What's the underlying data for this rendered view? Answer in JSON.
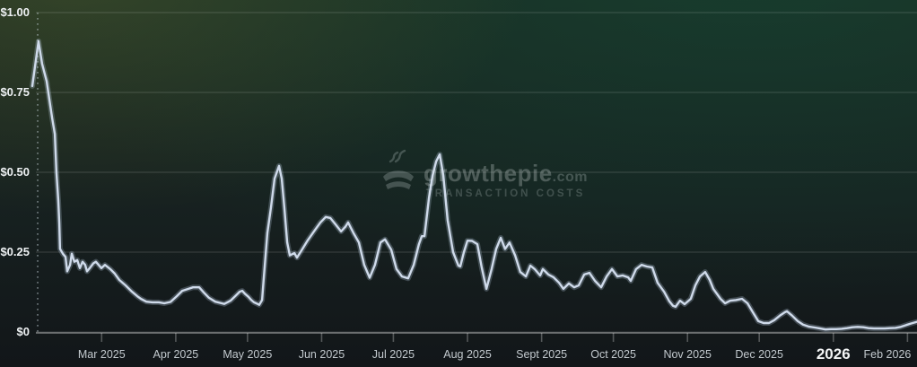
{
  "watermark": {
    "brand": "growthepie",
    "tld": ".com",
    "subtitle": "TRANSACTION COSTS"
  },
  "colors": {
    "line": "#cfdaea",
    "line_glow": "rgba(200,218,242,0.25)",
    "gridline": "rgba(255,255,255,0.17)",
    "axis_line": "rgba(255,255,255,0.32)",
    "tick": "rgba(255,255,255,0.28)",
    "start_marker": "rgba(200,214,220,0.55)",
    "y_label": "#eef1f3",
    "x_label": "#c3cacf",
    "x_label_emphasis": "#f3f5f6"
  },
  "chart_data": {
    "type": "line",
    "title": "",
    "series_name": "Transaction Costs (USD)",
    "legend": "none",
    "grid": true,
    "x_unit": "days since 2025-01-31",
    "x_start_date": "2025-01-31",
    "y_axis": {
      "min": 0,
      "max": 1.0,
      "ticks": [
        {
          "label": "$1.00",
          "value": 1.0
        },
        {
          "label": "$0.75",
          "value": 0.75
        },
        {
          "label": "$0.50",
          "value": 0.5
        },
        {
          "label": "$0.25",
          "value": 0.25
        },
        {
          "label": "$0",
          "value": 0
        }
      ]
    },
    "x_axis": {
      "months": [
        {
          "label": "Mar 2025",
          "day": 29
        },
        {
          "label": "Apr 2025",
          "day": 60
        },
        {
          "label": "May 2025",
          "day": 90
        },
        {
          "label": "Jun 2025",
          "day": 121
        },
        {
          "label": "Jul 2025",
          "day": 151
        },
        {
          "label": "Aug 2025",
          "day": 182
        },
        {
          "label": "Sept 2025",
          "day": 213
        },
        {
          "label": "Oct 2025",
          "day": 243
        },
        {
          "label": "Nov 2025",
          "day": 274
        },
        {
          "label": "Dec 2025",
          "day": 304
        },
        {
          "label": "2026",
          "day": 335,
          "emphasis": true
        },
        {
          "label": "Feb 2026",
          "day": 366,
          "align_right": true
        }
      ]
    },
    "points": [
      [
        0,
        0.77
      ],
      [
        2.6,
        0.91
      ],
      [
        4.1,
        0.84
      ],
      [
        6,
        0.785
      ],
      [
        7.1,
        0.73
      ],
      [
        8.3,
        0.67
      ],
      [
        9.4,
        0.62
      ],
      [
        10.1,
        0.5
      ],
      [
        10.9,
        0.41
      ],
      [
        11.3,
        0.34
      ],
      [
        11.6,
        0.26
      ],
      [
        12.8,
        0.245
      ],
      [
        13.9,
        0.235
      ],
      [
        14.6,
        0.19
      ],
      [
        15.8,
        0.21
      ],
      [
        16.5,
        0.245
      ],
      [
        17.6,
        0.22
      ],
      [
        18.8,
        0.225
      ],
      [
        19.9,
        0.2
      ],
      [
        21,
        0.22
      ],
      [
        22.1,
        0.21
      ],
      [
        22.9,
        0.19
      ],
      [
        24,
        0.2
      ],
      [
        25.5,
        0.215
      ],
      [
        26.6,
        0.22
      ],
      [
        28.9,
        0.2
      ],
      [
        30.4,
        0.21
      ],
      [
        32.6,
        0.197
      ],
      [
        34.5,
        0.183
      ],
      [
        36.4,
        0.163
      ],
      [
        39,
        0.146
      ],
      [
        41.7,
        0.126
      ],
      [
        43.9,
        0.112
      ],
      [
        45.4,
        0.104
      ],
      [
        47.7,
        0.095
      ],
      [
        50.3,
        0.093
      ],
      [
        52.9,
        0.093
      ],
      [
        55.2,
        0.09
      ],
      [
        57.8,
        0.094
      ],
      [
        60.4,
        0.112
      ],
      [
        62.7,
        0.129
      ],
      [
        65.3,
        0.135
      ],
      [
        67.2,
        0.14
      ],
      [
        69.8,
        0.14
      ],
      [
        71.7,
        0.124
      ],
      [
        73.9,
        0.107
      ],
      [
        76.5,
        0.095
      ],
      [
        79.2,
        0.09
      ],
      [
        80.3,
        0.088
      ],
      [
        81.4,
        0.092
      ],
      [
        82.9,
        0.098
      ],
      [
        85.2,
        0.115
      ],
      [
        86.7,
        0.126
      ],
      [
        87.8,
        0.129
      ],
      [
        88.9,
        0.12
      ],
      [
        90.4,
        0.11
      ],
      [
        91.6,
        0.1
      ],
      [
        92.7,
        0.093
      ],
      [
        94.2,
        0.088
      ],
      [
        94.9,
        0.085
      ],
      [
        96.1,
        0.1
      ],
      [
        96.8,
        0.17
      ],
      [
        98.3,
        0.31
      ],
      [
        99.8,
        0.39
      ],
      [
        101.3,
        0.48
      ],
      [
        103.2,
        0.52
      ],
      [
        104.3,
        0.48
      ],
      [
        105.4,
        0.39
      ],
      [
        106.6,
        0.28
      ],
      [
        107.7,
        0.24
      ],
      [
        109.6,
        0.247
      ],
      [
        110.7,
        0.233
      ],
      [
        113,
        0.26
      ],
      [
        115.2,
        0.287
      ],
      [
        117.8,
        0.315
      ],
      [
        120.5,
        0.343
      ],
      [
        122.7,
        0.36
      ],
      [
        124.6,
        0.357
      ],
      [
        126.8,
        0.337
      ],
      [
        129.1,
        0.315
      ],
      [
        131,
        0.33
      ],
      [
        132.1,
        0.343
      ],
      [
        134.3,
        0.31
      ],
      [
        136.6,
        0.28
      ],
      [
        138.8,
        0.21
      ],
      [
        141.1,
        0.17
      ],
      [
        143.3,
        0.21
      ],
      [
        145.6,
        0.28
      ],
      [
        147.5,
        0.29
      ],
      [
        150.1,
        0.258
      ],
      [
        152.3,
        0.197
      ],
      [
        154.6,
        0.174
      ],
      [
        157.2,
        0.168
      ],
      [
        159.5,
        0.21
      ],
      [
        161.7,
        0.275
      ],
      [
        162.9,
        0.3
      ],
      [
        164,
        0.3
      ],
      [
        165.9,
        0.42
      ],
      [
        167.4,
        0.49
      ],
      [
        168.9,
        0.534
      ],
      [
        170.4,
        0.556
      ],
      [
        171.9,
        0.49
      ],
      [
        173.7,
        0.35
      ],
      [
        176,
        0.25
      ],
      [
        178.2,
        0.208
      ],
      [
        179,
        0.205
      ],
      [
        180.5,
        0.25
      ],
      [
        182,
        0.286
      ],
      [
        183.9,
        0.285
      ],
      [
        186.1,
        0.275
      ],
      [
        188,
        0.2
      ],
      [
        189.9,
        0.135
      ],
      [
        192.1,
        0.197
      ],
      [
        194,
        0.26
      ],
      [
        195.9,
        0.295
      ],
      [
        197.7,
        0.26
      ],
      [
        199.6,
        0.28
      ],
      [
        201.9,
        0.24
      ],
      [
        204.1,
        0.188
      ],
      [
        206.4,
        0.174
      ],
      [
        208.3,
        0.208
      ],
      [
        210.1,
        0.197
      ],
      [
        212.4,
        0.177
      ],
      [
        213.5,
        0.197
      ],
      [
        215.8,
        0.18
      ],
      [
        218,
        0.171
      ],
      [
        220.3,
        0.154
      ],
      [
        222.1,
        0.135
      ],
      [
        224.4,
        0.152
      ],
      [
        226.6,
        0.14
      ],
      [
        228.5,
        0.146
      ],
      [
        230.8,
        0.18
      ],
      [
        233,
        0.185
      ],
      [
        235.3,
        0.16
      ],
      [
        237.9,
        0.14
      ],
      [
        240.2,
        0.174
      ],
      [
        242.4,
        0.197
      ],
      [
        244.7,
        0.174
      ],
      [
        246.9,
        0.177
      ],
      [
        249.2,
        0.171
      ],
      [
        250.3,
        0.16
      ],
      [
        252.5,
        0.197
      ],
      [
        254.8,
        0.21
      ],
      [
        257,
        0.205
      ],
      [
        259.3,
        0.202
      ],
      [
        261.5,
        0.154
      ],
      [
        264.2,
        0.126
      ],
      [
        266.4,
        0.096
      ],
      [
        267.9,
        0.082
      ],
      [
        269,
        0.079
      ],
      [
        270.9,
        0.098
      ],
      [
        272.8,
        0.087
      ],
      [
        275.4,
        0.104
      ],
      [
        277.3,
        0.146
      ],
      [
        279.2,
        0.174
      ],
      [
        281.4,
        0.188
      ],
      [
        283.3,
        0.163
      ],
      [
        284.8,
        0.135
      ],
      [
        287.8,
        0.104
      ],
      [
        289.7,
        0.09
      ],
      [
        291.9,
        0.098
      ],
      [
        294.2,
        0.1
      ],
      [
        296.8,
        0.104
      ],
      [
        299.1,
        0.09
      ],
      [
        301.3,
        0.062
      ],
      [
        303.6,
        0.034
      ],
      [
        305.8,
        0.028
      ],
      [
        308.1,
        0.028
      ],
      [
        310.3,
        0.037
      ],
      [
        312.6,
        0.051
      ],
      [
        314.8,
        0.062
      ],
      [
        315.6,
        0.065
      ],
      [
        317.8,
        0.051
      ],
      [
        320.1,
        0.034
      ],
      [
        322.3,
        0.023
      ],
      [
        324.6,
        0.017
      ],
      [
        327.2,
        0.014
      ],
      [
        329.5,
        0.011
      ],
      [
        331.7,
        0.008
      ],
      [
        334,
        0.009
      ],
      [
        336.2,
        0.009
      ],
      [
        338.5,
        0.01
      ],
      [
        340.7,
        0.012
      ],
      [
        343,
        0.015
      ],
      [
        345.2,
        0.016
      ],
      [
        347.5,
        0.015
      ],
      [
        349.7,
        0.012
      ],
      [
        352,
        0.011
      ],
      [
        354.2,
        0.011
      ],
      [
        356.5,
        0.011
      ],
      [
        358.7,
        0.012
      ],
      [
        361,
        0.013
      ],
      [
        363.2,
        0.016
      ],
      [
        365.5,
        0.022
      ],
      [
        367.7,
        0.027
      ],
      [
        370,
        0.032
      ]
    ]
  }
}
